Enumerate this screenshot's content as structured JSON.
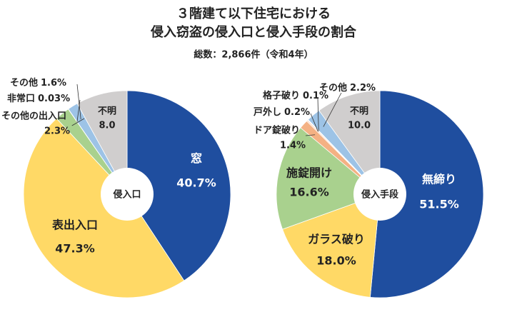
{
  "title": [
    "３階建て以下住宅における",
    "侵入窃盗の侵入口と侵入手段の割合"
  ],
  "subtitle": "総数：2,866件（令和4年）",
  "chart_data": [
    {
      "type": "pie",
      "center_label": "侵入口",
      "categories": [
        "窓",
        "表出入口",
        "その他の出入口",
        "非常口",
        "その他",
        "不明"
      ],
      "values": [
        40.7,
        47.3,
        2.3,
        0.03,
        1.6,
        8.0
      ],
      "value_labels": [
        "40.7%",
        "47.3%",
        "2.3%",
        "0.03%",
        "1.6%",
        "8.0"
      ],
      "colors": [
        "#1f4e9f",
        "#ffd966",
        "#a9d18e",
        "#8faadc",
        "#9dc3e6",
        "#d0cece"
      ]
    },
    {
      "type": "pie",
      "center_label": "侵入手段",
      "categories": [
        "無締り",
        "ガラス破り",
        "施錠開け",
        "ドア錠破り",
        "戸外し",
        "格子破り",
        "その他",
        "不明"
      ],
      "values": [
        51.5,
        18.0,
        16.6,
        1.4,
        0.2,
        0.1,
        2.2,
        10.0
      ],
      "value_labels": [
        "51.5%",
        "18.0%",
        "16.6%",
        "1.4%",
        "0.2%",
        "0.1%",
        "2.2%",
        "10.0"
      ],
      "colors": [
        "#1f4e9f",
        "#ffd966",
        "#a9d18e",
        "#f4b183",
        "#f8cbad",
        "#bdd7ee",
        "#9dc3e6",
        "#d0cece"
      ]
    }
  ]
}
